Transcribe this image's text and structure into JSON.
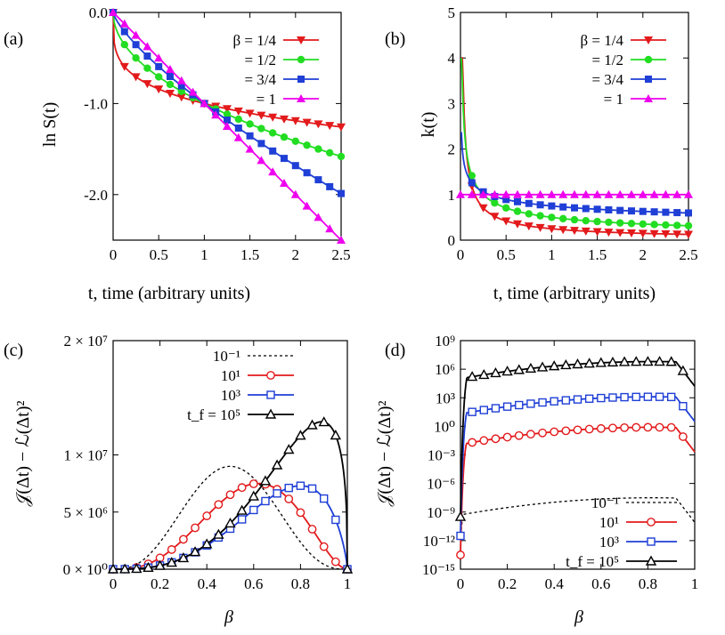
{
  "panels": [
    {
      "panel_label": "(a)",
      "chart_data": {
        "type": "line",
        "xlabel": "t, time (arbitrary units)",
        "ylabel": "ln S(t)",
        "xlim": [
          0,
          2.5
        ],
        "ylim": [
          -2.5,
          0
        ],
        "xticks": [
          "0",
          "0.5",
          "1",
          "1.5",
          "2",
          "2.5"
        ],
        "yticks": [
          "0.0",
          "-1.0",
          "-2.0"
        ],
        "legend_placement": "top-right",
        "model": "stretched_log",
        "series": [
          {
            "name": "β = 1/4",
            "beta": 0.25,
            "color": "#e31a1c",
            "marker": "triangle-down"
          },
          {
            "name": "= 1/2",
            "beta": 0.5,
            "color": "#22dd22",
            "marker": "circle"
          },
          {
            "name": "= 3/4",
            "beta": 0.75,
            "color": "#1f3fd6",
            "marker": "square"
          },
          {
            "name": "= 1",
            "beta": 1,
            "color": "#ee00ee",
            "marker": "triangle-up"
          }
        ]
      }
    },
    {
      "panel_label": "(b)",
      "chart_data": {
        "type": "line",
        "xlabel": "t, time (arbitrary units)",
        "ylabel": "k(t)",
        "xlim": [
          0,
          2.5
        ],
        "ylim": [
          0,
          5
        ],
        "xticks": [
          "0",
          "0.5",
          "1",
          "1.5",
          "2",
          "2.5"
        ],
        "yticks": [
          "0",
          "1",
          "2",
          "3",
          "4",
          "5"
        ],
        "legend_placement": "top-right",
        "model": "rate",
        "series": [
          {
            "name": "β = 1/4",
            "beta": 0.25,
            "color": "#e31a1c",
            "marker": "triangle-down"
          },
          {
            "name": "= 1/2",
            "beta": 0.5,
            "color": "#22dd22",
            "marker": "circle"
          },
          {
            "name": "= 3/4",
            "beta": 0.75,
            "color": "#1f3fd6",
            "marker": "square"
          },
          {
            "name": "= 1",
            "beta": 1,
            "color": "#ee00ee",
            "marker": "triangle-up"
          }
        ]
      }
    },
    {
      "panel_label": "(c)",
      "chart_data": {
        "type": "line",
        "xlabel": "β",
        "ylabel": "𝒥(Δt) − ℒ(Δt)²",
        "xlim": [
          0,
          1
        ],
        "ylim": [
          0,
          20000000
        ],
        "xticks": [
          "0",
          "0.2",
          "0.4",
          "0.6",
          "0.8",
          "1"
        ],
        "yticks": [
          "0 × 10⁰",
          "5 × 10⁶",
          "1 × 10⁷",
          "2 × 10⁷"
        ],
        "legend_placement": "top-left",
        "series": [
          {
            "name": "10⁻¹",
            "color": "#000000",
            "dash": true,
            "marker": "none",
            "peak_x": 0.5,
            "peak_y": 9000000
          },
          {
            "name": "10¹",
            "color": "#e31a1c",
            "marker": "open-circle",
            "peak_x": 0.62,
            "peak_y": 7500000
          },
          {
            "name": "10³",
            "color": "#1f3fd6",
            "marker": "open-square",
            "peak_x": 0.8,
            "peak_y": 7300000
          },
          {
            "name": "t_f = 10⁵",
            "color": "#000000",
            "marker": "open-triangle",
            "peak_x": 0.89,
            "peak_y": 12900000
          }
        ]
      }
    },
    {
      "panel_label": "(d)",
      "chart_data": {
        "type": "line",
        "xlabel": "β",
        "ylabel": "𝒥(Δt) − ℒ(Δt)²",
        "xlim": [
          0,
          1
        ],
        "ylim_log10": [
          -15,
          9
        ],
        "yscale": "log",
        "xticks": [
          "0",
          "0.2",
          "0.4",
          "0.6",
          "0.8",
          "1"
        ],
        "yticks": [
          "10⁻¹⁵",
          "10⁻¹²",
          "10⁻⁹",
          "10⁻⁶",
          "10⁻³",
          "10⁰",
          "10³",
          "10⁶",
          "10⁹"
        ],
        "legend_placement": "bottom-right",
        "series": [
          {
            "name": "10⁻¹",
            "color": "#000000",
            "dash": true,
            "marker": "none",
            "plateau_log10": -7.5,
            "start_log10": -12
          },
          {
            "name": "10¹",
            "color": "#e31a1c",
            "marker": "open-circle",
            "plateau_log10": -0.1,
            "start_log10": -13.5
          },
          {
            "name": "10³",
            "color": "#1f3fd6",
            "marker": "open-square",
            "plateau_log10": 3.1,
            "start_log10": -11.5
          },
          {
            "name": "t_f = 10⁵",
            "color": "#000000",
            "marker": "open-triangle",
            "plateau_log10": 6.8,
            "start_log10": -9.5
          }
        ]
      }
    }
  ]
}
